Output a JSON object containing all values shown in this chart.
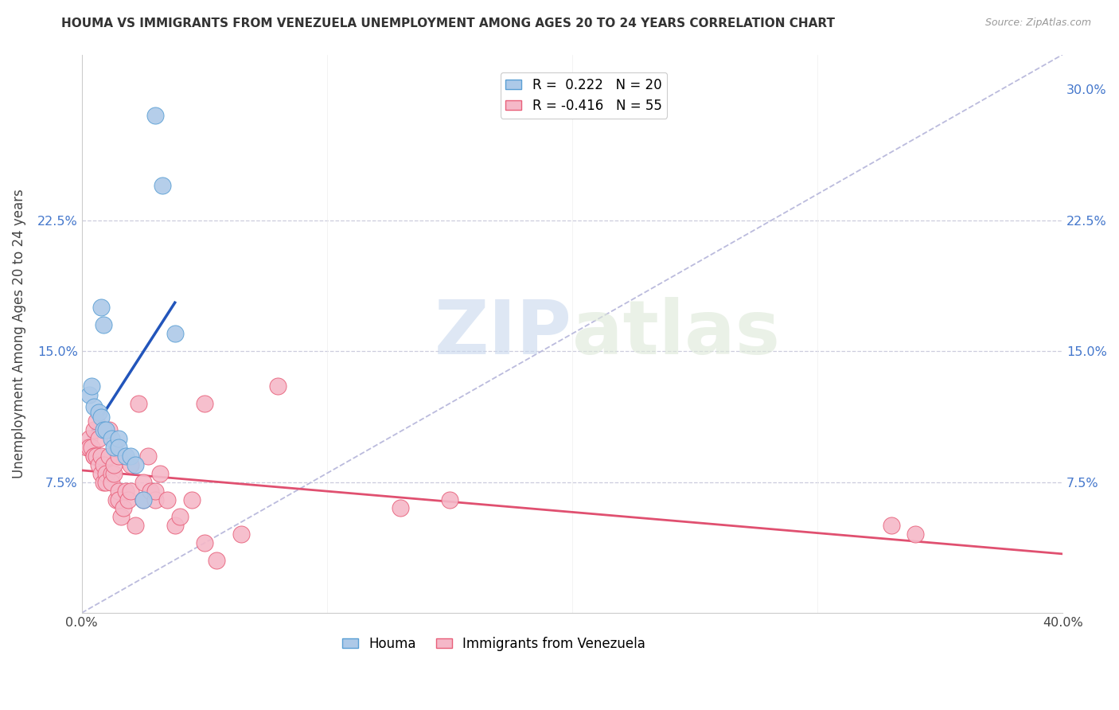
{
  "title": "HOUMA VS IMMIGRANTS FROM VENEZUELA UNEMPLOYMENT AMONG AGES 20 TO 24 YEARS CORRELATION CHART",
  "source": "Source: ZipAtlas.com",
  "ylabel": "Unemployment Among Ages 20 to 24 years",
  "xlim": [
    0.0,
    0.4
  ],
  "ylim": [
    0.0,
    0.32
  ],
  "xticks": [
    0.0,
    0.1,
    0.2,
    0.3,
    0.4
  ],
  "xtick_labels": [
    "0.0%",
    "",
    "",
    "",
    "40.0%"
  ],
  "yticks_left": [
    0.075,
    0.15,
    0.225
  ],
  "ytick_labels_left": [
    "7.5%",
    "15.0%",
    "22.5%"
  ],
  "yticks_right": [
    0.075,
    0.15,
    0.225,
    0.3
  ],
  "ytick_labels_right": [
    "7.5%",
    "15.0%",
    "22.5%",
    "30.0%"
  ],
  "houma_color": "#adc9e8",
  "houma_edge_color": "#5a9fd4",
  "venezuela_color": "#f5b8c8",
  "venezuela_edge_color": "#e8607a",
  "houma_line_color": "#2255bb",
  "venezuela_line_color": "#e05070",
  "ref_line_color": "#bbbbdd",
  "watermark_zip": "ZIP",
  "watermark_atlas": "atlas",
  "legend_r_houma": "R =  0.222",
  "legend_n_houma": "N = 20",
  "legend_r_venezuela": "R = -0.416",
  "legend_n_venezuela": "N = 55",
  "houma_x": [
    0.003,
    0.004,
    0.005,
    0.007,
    0.008,
    0.008,
    0.009,
    0.009,
    0.01,
    0.012,
    0.013,
    0.015,
    0.015,
    0.018,
    0.02,
    0.022,
    0.025,
    0.03,
    0.033,
    0.038
  ],
  "houma_y": [
    0.125,
    0.13,
    0.118,
    0.115,
    0.112,
    0.175,
    0.165,
    0.105,
    0.105,
    0.1,
    0.095,
    0.1,
    0.095,
    0.09,
    0.09,
    0.085,
    0.065,
    0.285,
    0.245,
    0.16
  ],
  "venezuela_x": [
    0.002,
    0.003,
    0.003,
    0.004,
    0.005,
    0.005,
    0.005,
    0.006,
    0.006,
    0.007,
    0.007,
    0.008,
    0.008,
    0.009,
    0.009,
    0.01,
    0.01,
    0.011,
    0.011,
    0.012,
    0.012,
    0.013,
    0.013,
    0.014,
    0.015,
    0.015,
    0.015,
    0.016,
    0.017,
    0.018,
    0.019,
    0.02,
    0.02,
    0.022,
    0.023,
    0.025,
    0.025,
    0.027,
    0.028,
    0.03,
    0.03,
    0.032,
    0.035,
    0.038,
    0.04,
    0.045,
    0.05,
    0.05,
    0.055,
    0.065,
    0.08,
    0.13,
    0.15,
    0.33,
    0.34
  ],
  "venezuela_y": [
    0.095,
    0.1,
    0.095,
    0.095,
    0.09,
    0.105,
    0.09,
    0.09,
    0.11,
    0.085,
    0.1,
    0.08,
    0.09,
    0.075,
    0.085,
    0.08,
    0.075,
    0.09,
    0.105,
    0.08,
    0.075,
    0.08,
    0.085,
    0.065,
    0.09,
    0.07,
    0.065,
    0.055,
    0.06,
    0.07,
    0.065,
    0.07,
    0.085,
    0.05,
    0.12,
    0.065,
    0.075,
    0.09,
    0.07,
    0.065,
    0.07,
    0.08,
    0.065,
    0.05,
    0.055,
    0.065,
    0.12,
    0.04,
    0.03,
    0.045,
    0.13,
    0.06,
    0.065,
    0.05,
    0.045
  ],
  "background_color": "#ffffff",
  "grid_color": "#ccccdd"
}
